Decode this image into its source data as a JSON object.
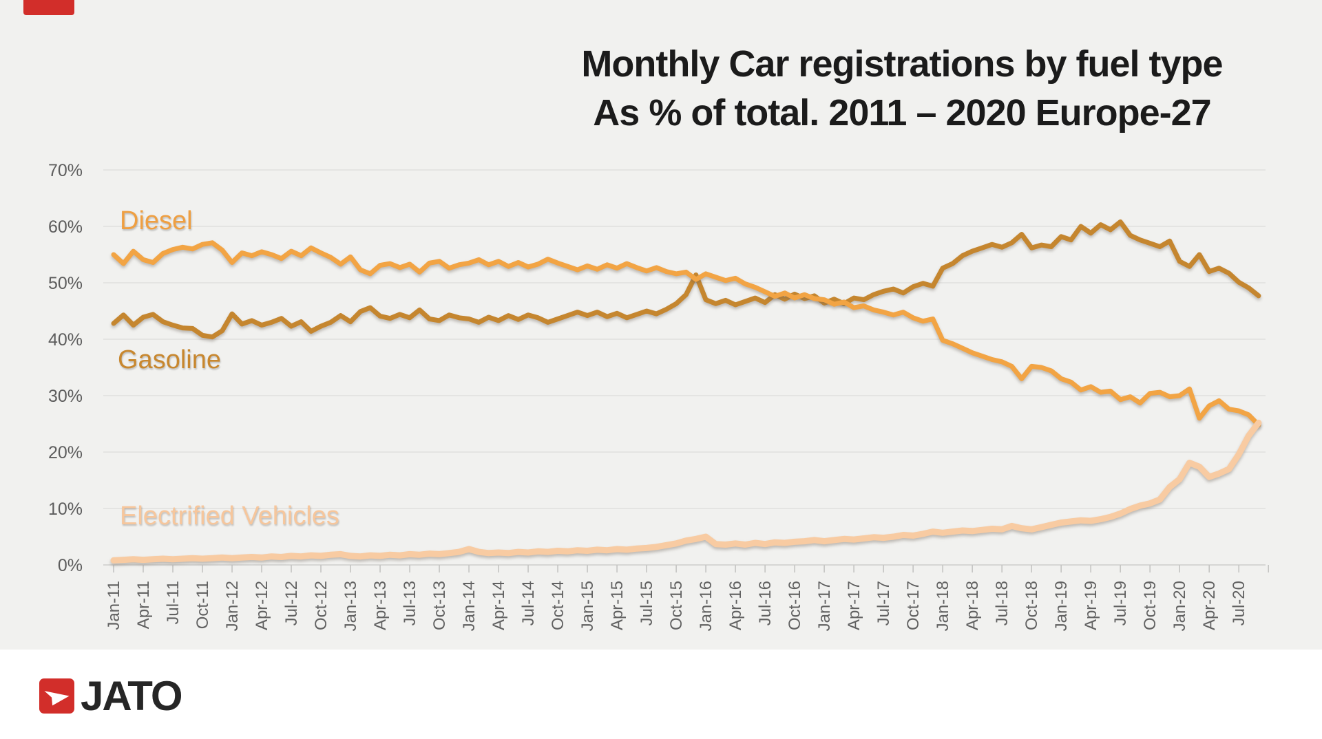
{
  "title": {
    "line1": "Monthly Car registrations by fuel type",
    "line2": "As % of total. 2011 – 2020 Europe-27"
  },
  "logo": {
    "text": "JATO",
    "square_color": "#d22e2a",
    "arrow_icon": "white-dart-right"
  },
  "decor": {
    "corner_tab_color": "#d22e2a"
  },
  "chart_data": {
    "type": "line",
    "title": "Monthly Car registrations by fuel type",
    "subtitle": "As % of total. 2011 – 2020 Europe-27",
    "grid": "horizontal",
    "legend_position": "labels-on-chart",
    "ylim": [
      0,
      70
    ],
    "y_tick_labels": [
      "0%",
      "10%",
      "20%",
      "30%",
      "40%",
      "50%",
      "60%",
      "70%"
    ],
    "x_frequency": "monthly (Jan-2011 to Sep-2020)",
    "x_tick_labels": [
      "Jan-11",
      "Apr-11",
      "Jul-11",
      "Oct-11",
      "Jan-12",
      "Apr-12",
      "Jul-12",
      "Oct-12",
      "Jan-13",
      "Apr-13",
      "Jul-13",
      "Oct-13",
      "Jan-14",
      "Apr-14",
      "Jul-14",
      "Oct-14",
      "Jan-15",
      "Apr-15",
      "Jul-15",
      "Oct-15",
      "Jan-16",
      "Apr-16",
      "Jul-16",
      "Oct-16",
      "Jan-17",
      "Apr-17",
      "Jul-17",
      "Oct-17",
      "Jan-18",
      "Apr-18",
      "Jul-18",
      "Oct-18",
      "Jan-19",
      "Apr-19",
      "Jul-19",
      "Oct-19",
      "Jan-20",
      "Apr-20",
      "Jul-20"
    ],
    "series": [
      {
        "name": "Gasoline",
        "color": "#c5862f",
        "values": [
          42.8,
          44.3,
          42.5,
          43.9,
          44.4,
          43.1,
          42.5,
          42.0,
          41.9,
          40.7,
          40.4,
          41.5,
          44.5,
          42.7,
          43.3,
          42.5,
          43.0,
          43.7,
          42.3,
          43.1,
          41.4,
          42.3,
          43.0,
          44.2,
          43.1,
          44.9,
          45.6,
          44.1,
          43.7,
          44.4,
          43.8,
          45.2,
          43.6,
          43.3,
          44.3,
          43.8,
          43.6,
          43.0,
          43.9,
          43.3,
          44.2,
          43.5,
          44.3,
          43.8,
          43.0,
          43.6,
          44.2,
          44.8,
          44.2,
          44.8,
          44.0,
          44.6,
          43.8,
          44.4,
          45.0,
          44.5,
          45.3,
          46.3,
          47.9,
          51.4,
          47.0,
          46.3,
          46.9,
          46.1,
          46.7,
          47.3,
          46.5,
          47.9,
          47.1,
          48.0,
          47.2,
          47.7,
          46.4,
          47.1,
          46.3,
          47.3,
          47.0,
          47.9,
          48.5,
          48.9,
          48.2,
          49.3,
          49.9,
          49.4,
          52.6,
          53.4,
          54.8,
          55.6,
          56.2,
          56.8,
          56.3,
          57.1,
          58.6,
          56.2,
          56.7,
          56.4,
          58.2,
          57.6,
          60.0,
          58.8,
          60.3,
          59.4,
          60.8,
          58.4,
          57.6,
          57.0,
          56.4,
          57.4,
          53.8,
          52.9,
          55.0,
          52.0,
          52.6,
          51.7,
          50.1,
          49.1,
          47.7
        ]
      },
      {
        "name": "Diesel",
        "color": "#f2a444",
        "values": [
          55.0,
          53.4,
          55.6,
          54.1,
          53.6,
          55.2,
          55.9,
          56.3,
          56.0,
          56.8,
          57.1,
          55.8,
          53.6,
          55.3,
          54.8,
          55.5,
          55.0,
          54.3,
          55.6,
          54.8,
          56.2,
          55.3,
          54.5,
          53.3,
          54.6,
          52.3,
          51.6,
          53.1,
          53.4,
          52.7,
          53.3,
          51.9,
          53.5,
          53.8,
          52.6,
          53.2,
          53.5,
          54.1,
          53.2,
          53.8,
          52.9,
          53.6,
          52.8,
          53.3,
          54.2,
          53.5,
          52.9,
          52.3,
          53.0,
          52.4,
          53.2,
          52.6,
          53.4,
          52.7,
          52.1,
          52.7,
          52.0,
          51.6,
          51.9,
          50.6,
          51.6,
          51.0,
          50.4,
          50.8,
          49.8,
          49.2,
          48.4,
          47.6,
          48.2,
          47.3,
          47.9,
          47.2,
          47.0,
          46.2,
          46.6,
          45.6,
          45.9,
          45.2,
          44.8,
          44.3,
          44.8,
          43.8,
          43.2,
          43.6,
          39.8,
          39.2,
          38.4,
          37.6,
          37.0,
          36.4,
          36.0,
          35.2,
          33.0,
          35.2,
          35.0,
          34.4,
          33.0,
          32.4,
          31.0,
          31.6,
          30.6,
          30.8,
          29.3,
          29.8,
          28.7,
          30.4,
          30.6,
          29.8,
          30.0,
          31.2,
          26.0,
          28.2,
          29.1,
          27.6,
          27.3,
          26.6,
          24.8
        ]
      },
      {
        "name": "Electrified Vehicles",
        "color": "#f8cba2",
        "values": [
          0.8,
          0.9,
          1.0,
          0.9,
          1.0,
          1.1,
          1.0,
          1.1,
          1.2,
          1.1,
          1.2,
          1.3,
          1.2,
          1.3,
          1.4,
          1.3,
          1.5,
          1.4,
          1.6,
          1.5,
          1.7,
          1.6,
          1.8,
          1.9,
          1.6,
          1.5,
          1.7,
          1.6,
          1.8,
          1.7,
          1.9,
          1.8,
          2.0,
          1.9,
          2.1,
          2.3,
          2.8,
          2.3,
          2.1,
          2.2,
          2.1,
          2.3,
          2.2,
          2.4,
          2.3,
          2.5,
          2.4,
          2.6,
          2.5,
          2.7,
          2.6,
          2.8,
          2.7,
          2.9,
          3.0,
          3.2,
          3.5,
          3.8,
          4.3,
          4.6,
          5.0,
          3.7,
          3.6,
          3.8,
          3.6,
          3.9,
          3.7,
          4.0,
          3.9,
          4.1,
          4.2,
          4.4,
          4.2,
          4.4,
          4.6,
          4.5,
          4.7,
          4.9,
          4.8,
          5.0,
          5.3,
          5.2,
          5.5,
          5.9,
          5.7,
          5.9,
          6.1,
          6.0,
          6.2,
          6.4,
          6.3,
          6.9,
          6.5,
          6.3,
          6.7,
          7.1,
          7.5,
          7.7,
          7.9,
          7.8,
          8.1,
          8.5,
          9.1,
          9.9,
          10.5,
          10.9,
          11.6,
          13.8,
          15.2,
          18.1,
          17.4,
          15.6,
          16.2,
          17.0,
          19.6,
          22.9,
          25.2
        ]
      }
    ]
  }
}
